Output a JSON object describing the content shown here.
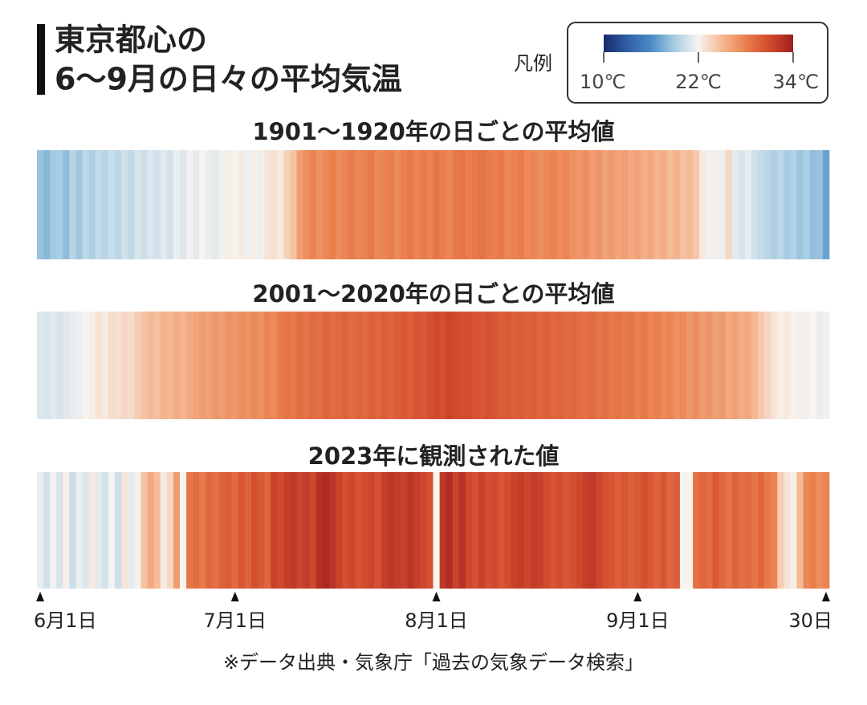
{
  "chart_data": {
    "type": "heatmap",
    "title": [
      "東京都心の",
      "6〜9月の日々の平均気温"
    ],
    "legend_label": "凡例",
    "note": "※データ出典・気象庁「過去の気象データ検索」",
    "clim": [
      10,
      34
    ],
    "cticks": [
      {
        "value": 10,
        "label": "10℃"
      },
      {
        "value": 22,
        "label": "22℃"
      },
      {
        "value": 34,
        "label": "34℃"
      }
    ],
    "colorscale": [
      "#1a2a6c",
      "#2f5fa6",
      "#4a8cc4",
      "#a9cde3",
      "#f7f4f0",
      "#f5b894",
      "#ea7f4d",
      "#d24a2e",
      "#9e1f1f"
    ],
    "xlim": [
      1,
      122
    ],
    "xticks": [
      {
        "value": 1,
        "label": "6月1日"
      },
      {
        "value": 31,
        "label": "7月1日"
      },
      {
        "value": 62,
        "label": "8月1日"
      },
      {
        "value": 93,
        "label": "9月1日"
      },
      {
        "value": 122,
        "label": "30日"
      }
    ],
    "series": [
      {
        "name": "1901〜1920年の日ごとの平均値",
        "values": [
          18.5,
          18,
          18.8,
          19,
          18.2,
          19.5,
          18.7,
          19.8,
          19.2,
          20,
          19.5,
          20.2,
          19.8,
          20.5,
          19.9,
          20.8,
          20.3,
          21,
          20.6,
          21.2,
          20.5,
          21.5,
          21,
          21.8,
          21.3,
          22,
          21.5,
          21.2,
          21.8,
          22.3,
          21.9,
          22.5,
          21.7,
          22.2,
          21.6,
          22.8,
          23,
          22.5,
          23.8,
          24.5,
          26.5,
          27.2,
          27.8,
          27,
          27.5,
          28,
          27.3,
          27.8,
          28.2,
          27.6,
          27.9,
          28.3,
          27.5,
          27.8,
          28.1,
          27.4,
          28,
          28.4,
          27.7,
          28.2,
          27.8,
          28.5,
          28.1,
          27.6,
          28.3,
          28.6,
          28,
          28.4,
          28.7,
          28.2,
          27.9,
          28.3,
          27.6,
          27.9,
          28.2,
          27.5,
          27.8,
          27.2,
          27.6,
          27.9,
          27.3,
          27.7,
          27.1,
          26.8,
          27.2,
          26.5,
          26.9,
          26.2,
          26.6,
          26,
          26.4,
          25.8,
          26.2,
          25.5,
          25.9,
          25.2,
          25.6,
          24.8,
          25.3,
          24.5,
          24.9,
          24.2,
          22.5,
          21.8,
          22.2,
          21.5,
          23.5,
          21.2,
          20.8,
          21.4,
          20.5,
          20,
          19.6,
          19.2,
          19.8,
          18.9,
          19.4,
          18.6,
          19.1,
          18.3,
          18.5,
          17
        ]
      },
      {
        "name": "2001〜2020年の日ごとの平均値",
        "values": [
          21,
          20.8,
          21.2,
          20.7,
          21.1,
          21.4,
          21.6,
          22,
          22.3,
          22.8,
          22.5,
          23.2,
          23,
          23.5,
          23.3,
          24,
          24.5,
          25,
          24.6,
          25.3,
          25,
          25.6,
          25.2,
          25.8,
          26.1,
          26.5,
          26.2,
          26.8,
          26.4,
          27,
          26.7,
          27.2,
          26.9,
          27.5,
          27.1,
          27.8,
          27.4,
          28.2,
          28.6,
          28.3,
          29,
          28.7,
          29.2,
          28.9,
          29.4,
          29,
          29.3,
          29.6,
          29.1,
          29.5,
          29.2,
          29.7,
          29.4,
          29.8,
          29.5,
          29.9,
          30.2,
          29.8,
          30.4,
          30.1,
          30.6,
          31.2,
          30.8,
          31.4,
          31,
          30.7,
          30.9,
          30.5,
          30.2,
          30.6,
          30.3,
          29.9,
          30.1,
          29.7,
          30,
          29.6,
          29.8,
          29.4,
          29.7,
          29.3,
          29.5,
          29.1,
          29.4,
          29,
          28.8,
          29.2,
          28.6,
          28.9,
          28.4,
          28.7,
          28.2,
          28.5,
          27.9,
          28.3,
          27.6,
          28,
          27.4,
          27.8,
          27.1,
          27.5,
          26.8,
          27.2,
          26.5,
          26.9,
          26.2,
          26.6,
          25.8,
          26.2,
          25.5,
          25.9,
          25,
          24.2,
          23.5,
          22.8,
          22.3,
          22.6,
          21.9,
          22.2,
          21.7,
          22,
          21.5,
          21.8
        ]
      },
      {
        "name": "2023年に観測された値",
        "values": [
          21.5,
          20.5,
          21.8,
          20.8,
          22.2,
          20.2,
          21.6,
          20.9,
          22.5,
          21.2,
          20.6,
          21.9,
          20.4,
          22.8,
          21.3,
          21.7,
          24.5,
          25.8,
          24.8,
          22.5,
          23.5,
          26.5,
          22,
          28.5,
          29,
          28.2,
          29.4,
          28.8,
          29.6,
          30,
          29.2,
          30.3,
          29.6,
          30.8,
          30.1,
          29.5,
          31.5,
          31,
          31.8,
          32.2,
          31.4,
          32,
          31.2,
          32.8,
          33.2,
          32.5,
          31.5,
          30.8,
          31.2,
          30.5,
          30.9,
          31.4,
          30.6,
          31.8,
          32.3,
          32,
          31.6,
          32.4,
          31.8,
          31.2,
          30.6,
          22,
          32.2,
          33,
          31.5,
          32.6,
          31.2,
          30.8,
          31.6,
          30.7,
          31.1,
          30.4,
          30.9,
          31.5,
          31.9,
          31.3,
          32,
          31.6,
          31,
          30.5,
          30.9,
          30.2,
          30.7,
          31.2,
          31.8,
          32.1,
          31.4,
          30.8,
          30.3,
          29.8,
          30.4,
          29.7,
          30.1,
          30.8,
          30.2,
          29.6,
          30.3,
          29.4,
          29.9,
          22,
          22,
          28.8,
          29.5,
          29,
          30.2,
          29.3,
          28.7,
          29.6,
          28.9,
          29.2,
          28.5,
          29.4,
          28.3,
          27.8,
          24,
          22.8,
          22.3,
          25,
          27.5,
          28,
          27.2,
          27.8
        ]
      }
    ]
  }
}
